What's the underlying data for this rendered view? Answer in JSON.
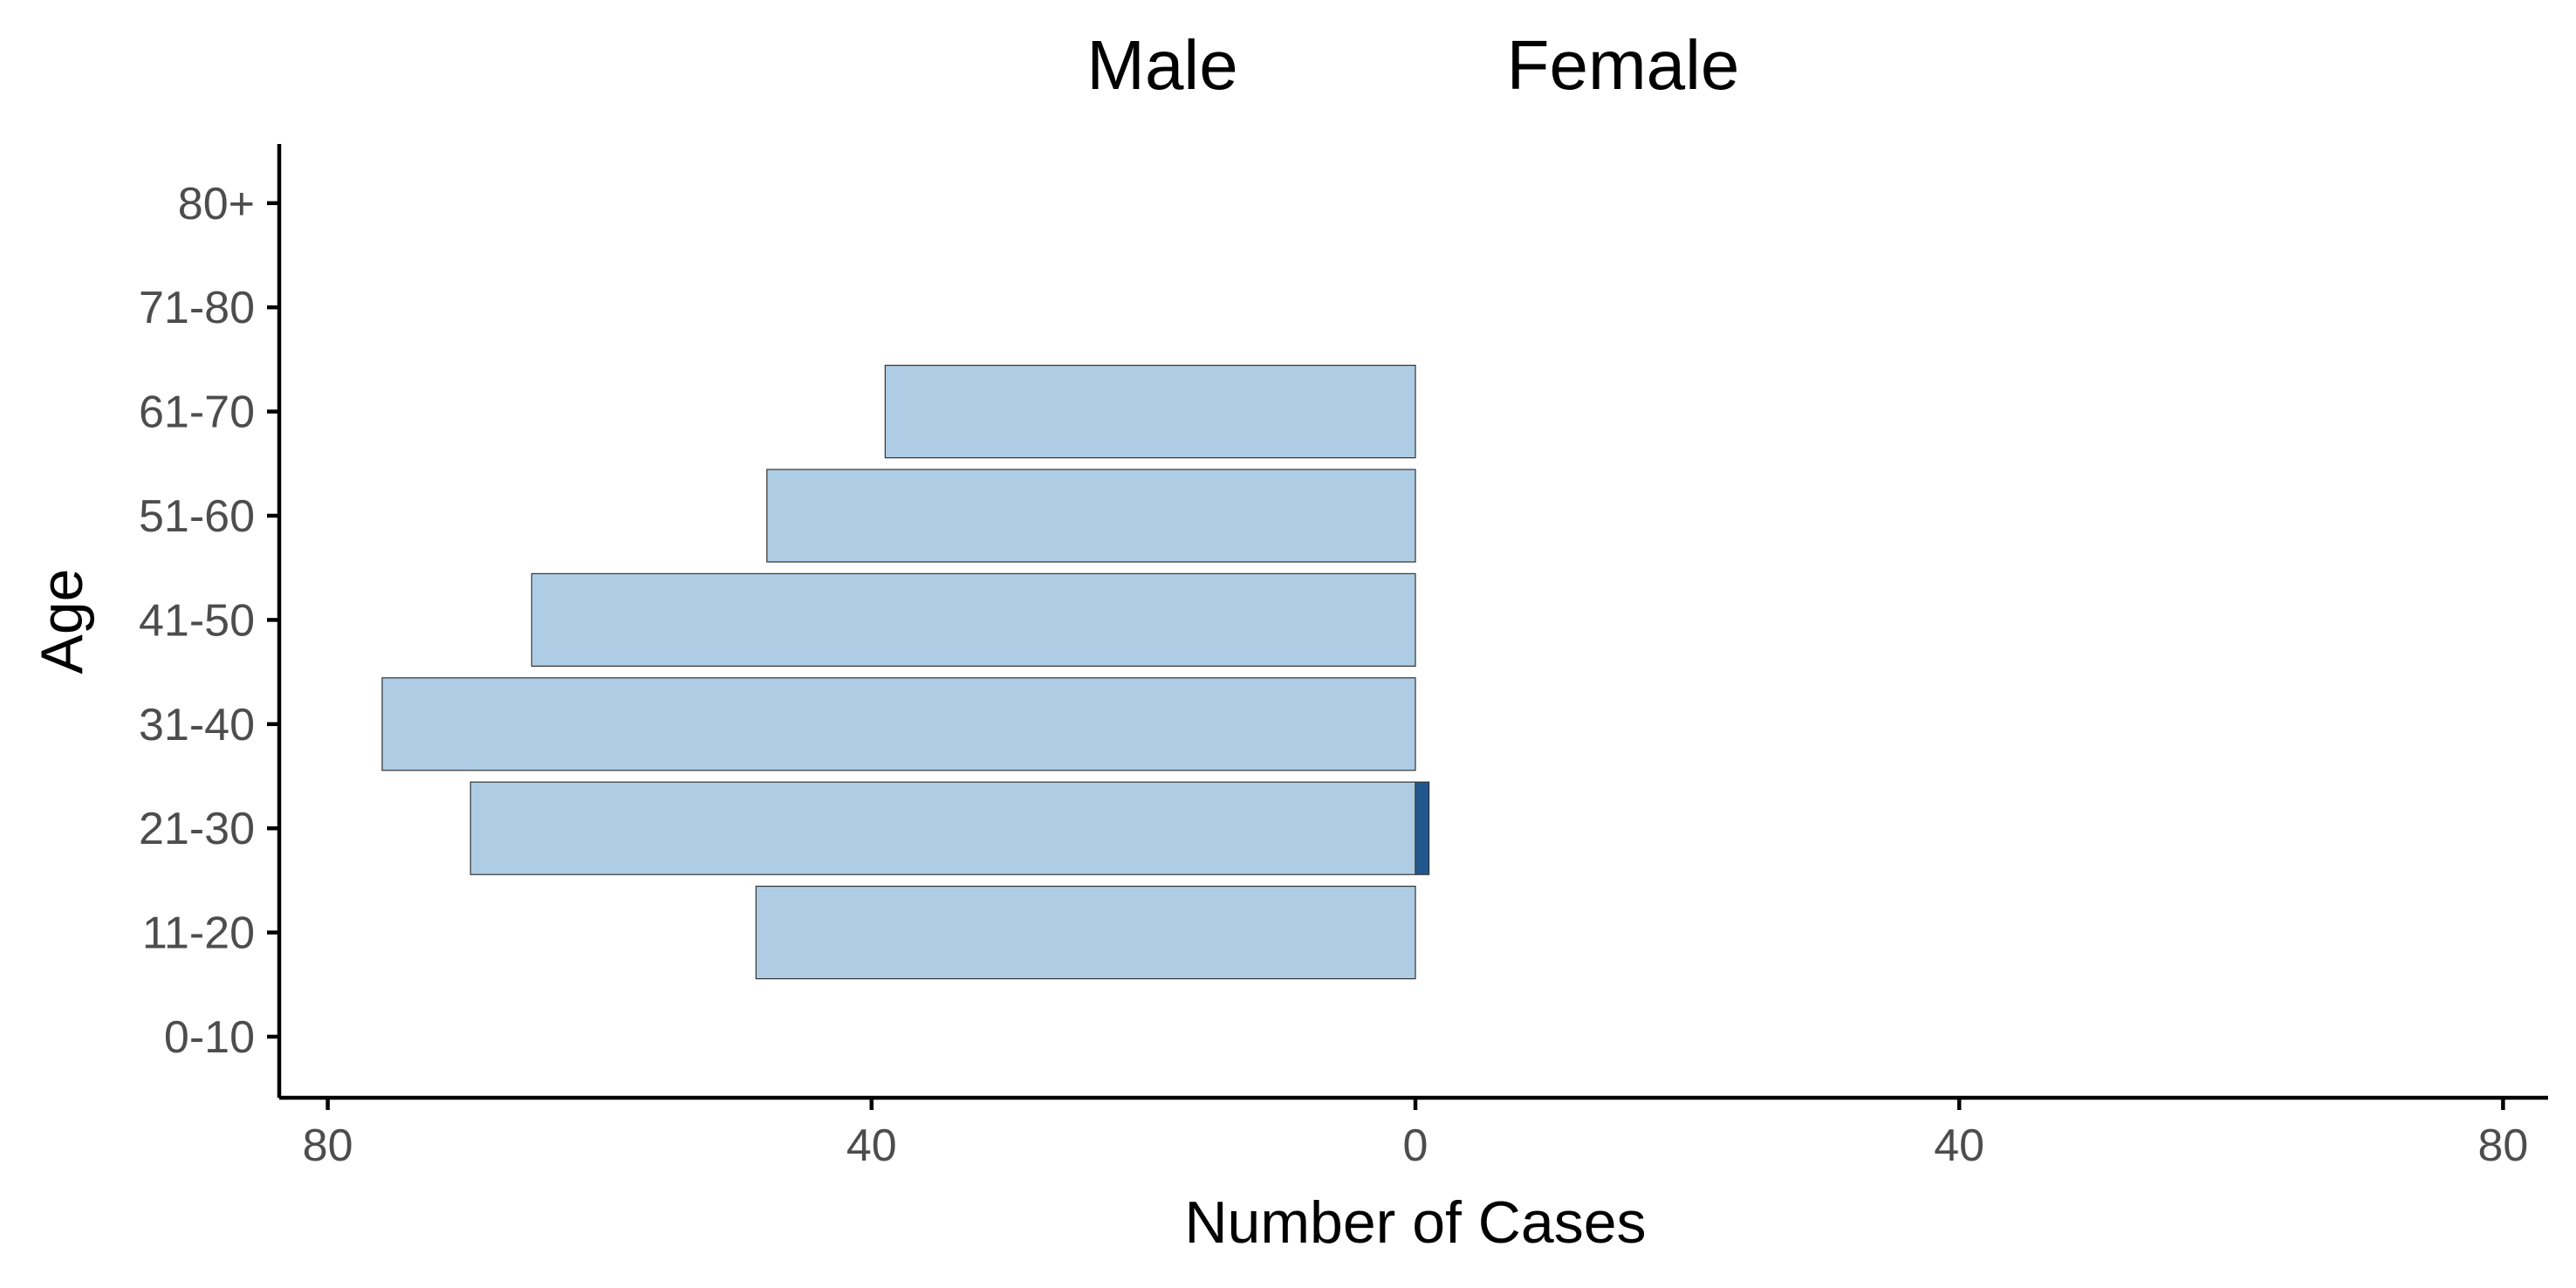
{
  "chart_data": {
    "type": "bar",
    "orientation": "horizontal",
    "layout": "population-pyramid",
    "side_titles": [
      "Male",
      "Female"
    ],
    "xlabel": "Number of Cases",
    "ylabel": "Age",
    "categories": [
      "0-10",
      "11-20",
      "21-30",
      "31-40",
      "41-50",
      "51-60",
      "61-70",
      "71-80",
      "80+"
    ],
    "x_ticks": [
      {
        "value": -80,
        "label": "80"
      },
      {
        "value": -40,
        "label": "40"
      },
      {
        "value": 0,
        "label": "0"
      },
      {
        "value": 40,
        "label": "40"
      },
      {
        "value": 80,
        "label": "80"
      }
    ],
    "xlim": [
      -80,
      80
    ],
    "series": [
      {
        "side": "left",
        "color": "#aecde5",
        "values": [
          0,
          48.5,
          69.5,
          76,
          65,
          47.7,
          39,
          0,
          0
        ]
      },
      {
        "side": "right",
        "color": "#23588f",
        "values": [
          0,
          0,
          1,
          0,
          0,
          0,
          0,
          0,
          0
        ]
      }
    ],
    "grid": false,
    "legend": "none"
  }
}
